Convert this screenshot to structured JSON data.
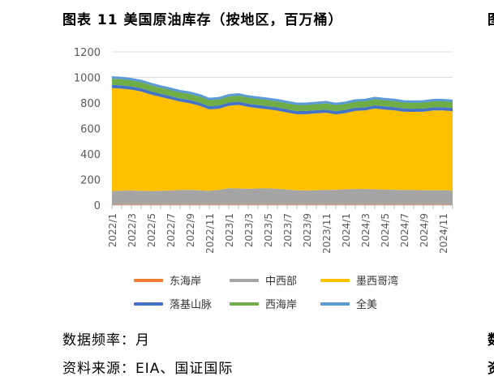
{
  "figure_title": "图表 11 美国原油库存（按地区，百万桶）",
  "edge_fragments": {
    "top_right": "图",
    "bottom_right_1": "数",
    "bottom_right_2": "资"
  },
  "notes": {
    "frequency": "数据频率：月",
    "source": "资料来源：EIA、国证国际"
  },
  "colors": {
    "east_coast": "#ED7D31",
    "midwest": "#A5A5A5",
    "gulf_coast": "#FFC000",
    "rocky_mountain": "#4472C4",
    "west_coast": "#70AD47",
    "us_total": "#5B9BD5"
  },
  "chart_data": {
    "type": "area",
    "stacked": true,
    "ylim": [
      0,
      1200
    ],
    "yticks": [
      0,
      200,
      400,
      600,
      800,
      1000,
      1200
    ],
    "x_tick_labels": [
      "2022/1",
      "2022/3",
      "2022/5",
      "2022/7",
      "2022/9",
      "2022/11",
      "2023/1",
      "2023/3",
      "2023/5",
      "2023/7",
      "2023/9",
      "2023/11",
      "2024/1",
      "2024/3",
      "2024/5",
      "2024/7",
      "2024/9",
      "2024/11"
    ],
    "x": [
      "2022/1",
      "2022/2",
      "2022/3",
      "2022/4",
      "2022/5",
      "2022/6",
      "2022/7",
      "2022/8",
      "2022/9",
      "2022/10",
      "2022/11",
      "2022/12",
      "2023/1",
      "2023/2",
      "2023/3",
      "2023/4",
      "2023/5",
      "2023/6",
      "2023/7",
      "2023/8",
      "2023/9",
      "2023/10",
      "2023/11",
      "2023/12",
      "2024/1",
      "2024/2",
      "2024/3",
      "2024/4",
      "2024/5",
      "2024/6",
      "2024/7",
      "2024/8",
      "2024/9",
      "2024/10",
      "2024/11",
      "2024/12"
    ],
    "grid": true,
    "legend_position": "bottom",
    "series": [
      {
        "name": "东海岸",
        "color_key": "east_coast",
        "kind": "area",
        "values": [
          6,
          6,
          6,
          6,
          6,
          6,
          6,
          6,
          6,
          6,
          6,
          6,
          6,
          6,
          6,
          6,
          6,
          6,
          6,
          6,
          6,
          6,
          6,
          6,
          6,
          6,
          6,
          6,
          6,
          6,
          6,
          6,
          6,
          6,
          6,
          6
        ]
      },
      {
        "name": "中西部",
        "color_key": "midwest",
        "kind": "area",
        "values": [
          104,
          107,
          108,
          106,
          104,
          106,
          108,
          112,
          114,
          110,
          106,
          112,
          126,
          124,
          122,
          124,
          125,
          122,
          116,
          110,
          108,
          110,
          113,
          114,
          118,
          120,
          120,
          118,
          116,
          114,
          112,
          112,
          111,
          110,
          110,
          109
        ]
      },
      {
        "name": "墨西哥湾",
        "color_key": "gulf_coast",
        "kind": "area",
        "values": [
          807,
          799,
          790,
          778,
          756,
          735,
          715,
          692,
          678,
          662,
          637,
          637,
          646,
          655,
          641,
          629,
          619,
          612,
          603,
          595,
          598,
          602,
          604,
          590,
          597,
          612,
          615,
          632,
          626,
          622,
          613,
          612,
          614,
          625,
          625,
          621
        ]
      },
      {
        "name": "落基山脉",
        "color_key": "rocky_mountain",
        "kind": "area",
        "values": [
          25,
          25,
          25,
          25,
          25,
          25,
          25,
          25,
          25,
          25,
          25,
          25,
          25,
          25,
          25,
          25,
          25,
          25,
          25,
          25,
          25,
          25,
          25,
          25,
          25,
          25,
          25,
          25,
          25,
          25,
          25,
          25,
          25,
          25,
          25,
          25
        ]
      },
      {
        "name": "西海岸",
        "color_key": "west_coast",
        "kind": "area",
        "values": [
          48,
          48,
          48,
          48,
          48,
          48,
          48,
          48,
          48,
          48,
          48,
          48,
          48,
          48,
          48,
          48,
          48,
          48,
          48,
          48,
          48,
          48,
          48,
          48,
          48,
          48,
          48,
          48,
          48,
          48,
          48,
          48,
          48,
          48,
          48,
          48
        ]
      },
      {
        "name": "全美",
        "color_key": "us_total",
        "kind": "line",
        "values": [
          1000,
          995,
          986,
          972,
          949,
          929,
          911,
          892,
          880,
          860,
          831,
          837,
          860,
          867,
          851,
          841,
          832,
          822,
          807,
          793,
          794,
          800,
          806,
          792,
          802,
          819,
          823,
          838,
          830,
          824,
          812,
          810,
          812,
          822,
          822,
          817
        ]
      }
    ]
  }
}
